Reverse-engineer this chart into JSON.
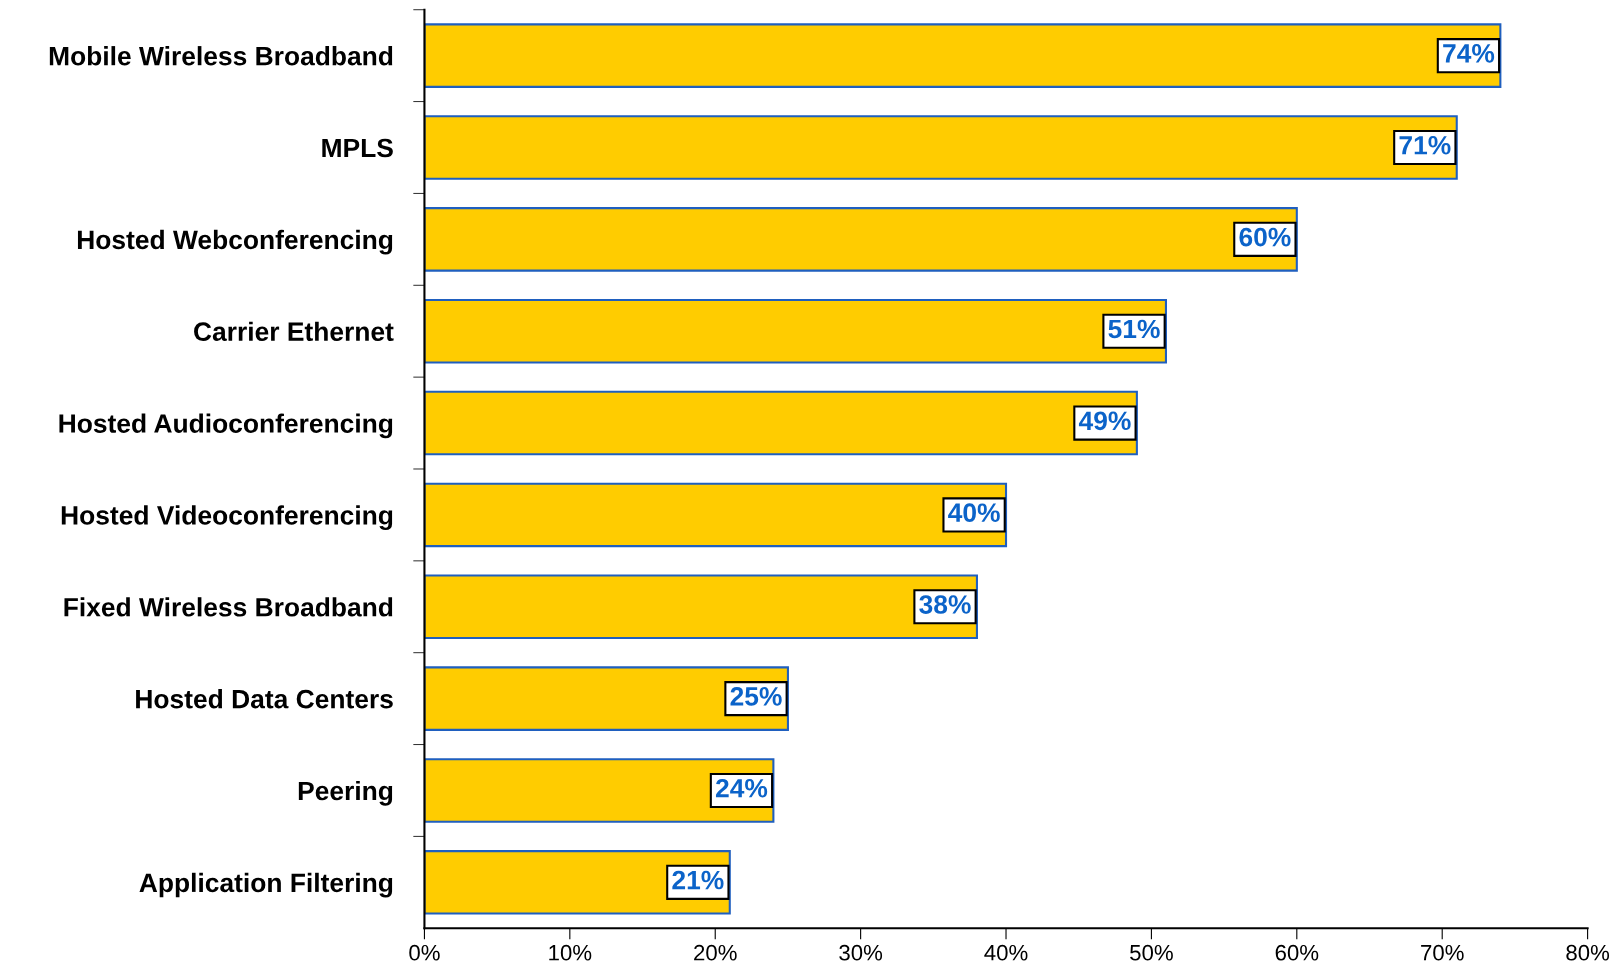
{
  "chart_data": {
    "type": "bar",
    "orientation": "horizontal",
    "categories": [
      "Mobile Wireless Broadband",
      "MPLS",
      "Hosted Webconferencing",
      "Carrier Ethernet",
      "Hosted Audioconferencing",
      "Hosted Videoconferencing",
      "Fixed Wireless Broadband",
      "Hosted Data Centers",
      "Peering",
      "Application Filtering"
    ],
    "values": [
      74,
      71,
      60,
      51,
      49,
      40,
      38,
      25,
      24,
      21
    ],
    "value_labels": [
      "74%",
      "71%",
      "60%",
      "51%",
      "49%",
      "40%",
      "38%",
      "25%",
      "24%",
      "21%"
    ],
    "color": "#ffcc00",
    "xlim": [
      0,
      80
    ],
    "xticks": [
      {
        "value": 0,
        "label": "0%"
      },
      {
        "value": 10,
        "label": "10%"
      },
      {
        "value": 20,
        "label": "20%"
      },
      {
        "value": 30,
        "label": "30%"
      },
      {
        "value": 40,
        "label": "40%"
      },
      {
        "value": 50,
        "label": "50%"
      },
      {
        "value": 60,
        "label": "60%"
      },
      {
        "value": 70,
        "label": "70%"
      },
      {
        "value": 80,
        "label": "80%"
      }
    ],
    "grid": false
  }
}
